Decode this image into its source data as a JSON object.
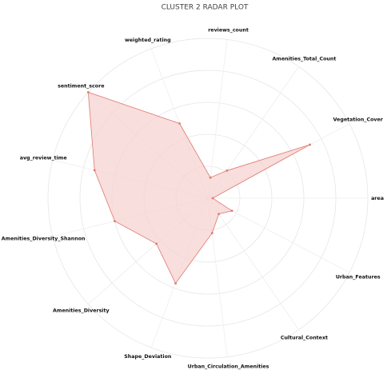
{
  "chart_data": {
    "type": "radar",
    "title": "CLUSTER 2 RADAR PLOT",
    "categories": [
      "area",
      "Vegetation_Cover",
      "Amenities_Total_Count",
      "reviews_count",
      "weighted_rating",
      "sentiment_score",
      "avg_review_time",
      "Amenities_Diversity_Shannon",
      "Amenities_Diversity",
      "Shape_Deviation",
      "Urban_Circulation_Amenities",
      "Cultural_Context",
      "Urban_Features"
    ],
    "values": [
      0.03,
      0.72,
      0.21,
      0.13,
      0.5,
      1.0,
      0.73,
      0.6,
      0.43,
      0.57,
      0.22,
      0.12,
      0.17
    ],
    "color": "#e07a70",
    "fill": "#f6d3d0",
    "ylim": [
      0,
      1
    ],
    "yticks": [
      0.2,
      0.4,
      0.6,
      0.8,
      1.0
    ],
    "grid": true
  }
}
